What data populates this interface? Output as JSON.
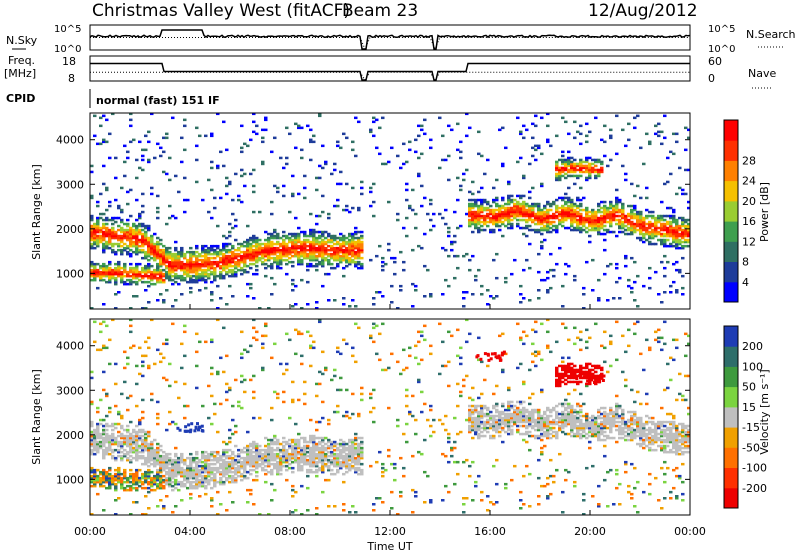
{
  "header": {
    "title": "Christmas Valley West (fitACF)",
    "beam": "Beam 23",
    "date": "12/Aug/2012"
  },
  "strips": {
    "nsky_label": "N.Sky",
    "nsky_ticks": [
      "10^5",
      "10^0"
    ],
    "nsearch_label": "N.Search",
    "nsearch_ticks": [
      "10^5",
      "10^0"
    ],
    "freq_label": "Freq.",
    "freq_unit": "[MHz]",
    "freq_ticks": [
      "18",
      "8"
    ],
    "nave_label": "Nave",
    "nave_ticks": [
      "60",
      "0"
    ],
    "cpid_label": "CPID",
    "cpid_text": "normal (fast) 151 IF"
  },
  "colors": {
    "power": [
      "#0000ff",
      "#1e3c9a",
      "#2f6f63",
      "#3f9f4f",
      "#9acd32",
      "#f5c000",
      "#ff8000",
      "#ff3000",
      "#ff0000"
    ],
    "velocity_pos": [
      "#1e3cb4",
      "#2e6e6a",
      "#3e9a3e",
      "#7bd440"
    ],
    "velocity_neg": [
      "#f0a000",
      "#ff7000",
      "#ff3000",
      "#ee0000"
    ],
    "ground_scatter": "#bfbfbf"
  },
  "chart_data": [
    {
      "type": "heatmap",
      "panel": "power",
      "ylabel": "Slant Range [km]",
      "xlabel": "Time UT",
      "xticks": [
        "00:00",
        "04:00",
        "08:00",
        "12:00",
        "16:00",
        "20:00",
        "00:00"
      ],
      "yticks": [
        "1000",
        "2000",
        "3000",
        "4000"
      ],
      "ylim": [
        200,
        4600
      ],
      "colorbar": {
        "label": "Power [dB]",
        "ticks": [
          "4",
          "8",
          "12",
          "16",
          "20",
          "24",
          "28"
        ]
      },
      "echo_bands": [
        {
          "name": "main band",
          "x": [
            0,
            2,
            3.2,
            5,
            7,
            8.5,
            10,
            10.8
          ],
          "y": [
            1900,
            1750,
            1150,
            1200,
            1500,
            1550,
            1500,
            1500
          ]
        },
        {
          "name": "upper band",
          "x": [
            15,
            16,
            17,
            18,
            19,
            20,
            21,
            22,
            23,
            24
          ],
          "y": [
            2300,
            2250,
            2400,
            2200,
            2350,
            2150,
            2300,
            2050,
            1950,
            1850
          ]
        },
        {
          "name": "morning layer",
          "x": [
            0,
            1,
            2,
            3
          ],
          "y": [
            1000,
            1000,
            950,
            900
          ]
        },
        {
          "name": "isolated patch",
          "x": [
            18.5,
            19.5,
            20.5
          ],
          "y": [
            3300,
            3350,
            3300
          ]
        }
      ]
    },
    {
      "type": "heatmap",
      "panel": "velocity",
      "ylabel": "Slant Range [km]",
      "xlabel": "Time UT",
      "xticks": [
        "00:00",
        "04:00",
        "08:00",
        "12:00",
        "16:00",
        "20:00",
        "00:00"
      ],
      "yticks": [
        "1000",
        "2000",
        "3000",
        "4000"
      ],
      "ylim": [
        200,
        4600
      ],
      "colorbar": {
        "label": "Velocity [m s⁻¹]",
        "ticks": [
          "200",
          "100",
          "50",
          "15",
          "-15",
          "-50",
          "-100",
          "-200"
        ]
      },
      "notable_echoes": [
        {
          "x": 4,
          "y": 2200,
          "velocity": 200
        },
        {
          "x": 16,
          "y": 3800,
          "velocity": -200
        },
        {
          "x": 20,
          "y": 3300,
          "velocity": -200
        }
      ]
    }
  ]
}
